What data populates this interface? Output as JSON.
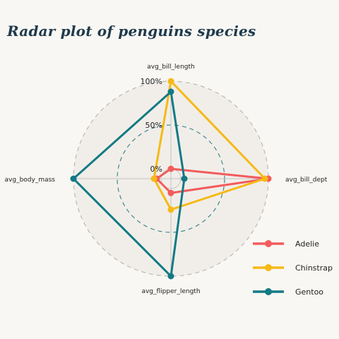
{
  "chart_data": {
    "type": "radar",
    "title": "Radar plot of penguins species",
    "axes": [
      "avg_bill_length",
      "avg_bill_dept",
      "avg_flipper_length",
      "avg_body_mass"
    ],
    "radial_tick_labels": [
      "0%",
      "50%",
      "100%"
    ],
    "range": [
      0,
      1
    ],
    "legend_position": "bottom-right",
    "series": [
      {
        "name": "Adelie",
        "color": "#f25c5c",
        "values": [
          0.0,
          1.0,
          0.05,
          0.05
        ]
      },
      {
        "name": "Chinstrap",
        "color": "#f6b916",
        "values": [
          1.0,
          0.96,
          0.24,
          0.08
        ]
      },
      {
        "name": "Gentoo",
        "color": "#127a85",
        "values": [
          0.88,
          0.04,
          1.0,
          1.0
        ]
      }
    ]
  }
}
